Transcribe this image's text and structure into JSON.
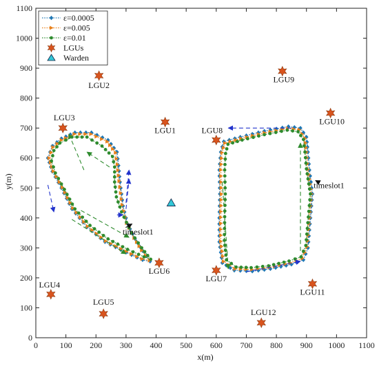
{
  "chart_data": {
    "type": "scatter",
    "xlabel": "x(m)",
    "ylabel": "y(m)",
    "xlim": [
      0,
      1100
    ],
    "ylim": [
      0,
      1100
    ],
    "xticks": [
      0,
      100,
      200,
      300,
      400,
      500,
      600,
      700,
      800,
      900,
      1000,
      1100
    ],
    "yticks": [
      0,
      100,
      200,
      300,
      400,
      500,
      600,
      700,
      800,
      900,
      1000,
      1100
    ],
    "grid": false,
    "legend": {
      "position": "top-left",
      "entries": [
        {
          "label": "ε=0.0005",
          "color": "#1f77b4",
          "marker": "diamond",
          "line": "dotted"
        },
        {
          "label": "ε=0.005",
          "color": "#e8801a",
          "marker": "triangle-right",
          "line": "dotted"
        },
        {
          "label": "ε=0.01",
          "color": "#2e8b2e",
          "marker": "circle",
          "line": "dotted"
        },
        {
          "label": "LGUs",
          "color": "#d9541e",
          "marker": "hexagram",
          "line": "none"
        },
        {
          "label": "Warden",
          "color": "#33c8d8",
          "marker": "triangle-up",
          "line": "none"
        }
      ]
    },
    "lgus": [
      {
        "label": "LGU1",
        "x": 430,
        "y": 720
      },
      {
        "label": "LGU2",
        "x": 210,
        "y": 875
      },
      {
        "label": "LGU3",
        "x": 90,
        "y": 700
      },
      {
        "label": "LGU4",
        "x": 50,
        "y": 145
      },
      {
        "label": "LGU5",
        "x": 225,
        "y": 80
      },
      {
        "label": "LGU6",
        "x": 410,
        "y": 250
      },
      {
        "label": "LGU7",
        "x": 600,
        "y": 225
      },
      {
        "label": "LGU8",
        "x": 600,
        "y": 660
      },
      {
        "label": "LGU9",
        "x": 820,
        "y": 890
      },
      {
        "label": "LGU10",
        "x": 980,
        "y": 750
      },
      {
        "label": "LGU11",
        "x": 920,
        "y": 180
      },
      {
        "label": "LGU12",
        "x": 750,
        "y": 50
      }
    ],
    "warden": {
      "x": 450,
      "y": 450
    },
    "left_paths": [
      {
        "series": "ε=0.0005",
        "points": [
          [
            380,
            255
          ],
          [
            355,
            290
          ],
          [
            330,
            330
          ],
          [
            305,
            380
          ],
          [
            290,
            440
          ],
          [
            280,
            520
          ],
          [
            275,
            575
          ],
          [
            270,
            620
          ],
          [
            240,
            660
          ],
          [
            185,
            685
          ],
          [
            130,
            685
          ],
          [
            85,
            665
          ],
          [
            55,
            640
          ],
          [
            40,
            600
          ],
          [
            55,
            555
          ],
          [
            85,
            500
          ],
          [
            120,
            430
          ],
          [
            170,
            370
          ],
          [
            230,
            320
          ],
          [
            300,
            285
          ],
          [
            355,
            260
          ],
          [
            380,
            255
          ]
        ]
      },
      {
        "series": "ε=0.005",
        "points": [
          [
            378,
            258
          ],
          [
            352,
            292
          ],
          [
            327,
            333
          ],
          [
            302,
            383
          ],
          [
            287,
            443
          ],
          [
            277,
            523
          ],
          [
            271,
            578
          ],
          [
            265,
            618
          ],
          [
            237,
            655
          ],
          [
            183,
            680
          ],
          [
            128,
            680
          ],
          [
            85,
            660
          ],
          [
            57,
            636
          ],
          [
            44,
            600
          ],
          [
            58,
            556
          ],
          [
            88,
            502
          ],
          [
            123,
            433
          ],
          [
            172,
            372
          ],
          [
            232,
            323
          ],
          [
            300,
            288
          ],
          [
            353,
            263
          ],
          [
            378,
            258
          ]
        ]
      },
      {
        "series": "ε=0.01",
        "points": [
          [
            382,
            262
          ],
          [
            352,
            300
          ],
          [
            318,
            350
          ],
          [
            285,
            420
          ],
          [
            268,
            470
          ],
          [
            262,
            520
          ],
          [
            262,
            570
          ],
          [
            255,
            605
          ],
          [
            220,
            640
          ],
          [
            170,
            670
          ],
          [
            120,
            670
          ],
          [
            80,
            650
          ],
          [
            60,
            625
          ],
          [
            52,
            590
          ],
          [
            65,
            550
          ],
          [
            95,
            495
          ],
          [
            130,
            430
          ],
          [
            180,
            375
          ],
          [
            240,
            330
          ],
          [
            305,
            295
          ],
          [
            360,
            270
          ],
          [
            382,
            262
          ]
        ]
      }
    ],
    "right_paths": [
      {
        "series": "ε=0.0005",
        "points": [
          [
            920,
            480
          ],
          [
            915,
            420
          ],
          [
            910,
            360
          ],
          [
            905,
            300
          ],
          [
            890,
            260
          ],
          [
            850,
            245
          ],
          [
            780,
            230
          ],
          [
            720,
            222
          ],
          [
            660,
            225
          ],
          [
            620,
            250
          ],
          [
            610,
            320
          ],
          [
            610,
            400
          ],
          [
            612,
            480
          ],
          [
            610,
            560
          ],
          [
            615,
            620
          ],
          [
            625,
            655
          ],
          [
            680,
            670
          ],
          [
            760,
            690
          ],
          [
            840,
            705
          ],
          [
            880,
            700
          ],
          [
            900,
            670
          ],
          [
            905,
            620
          ],
          [
            910,
            560
          ],
          [
            920,
            480
          ]
        ]
      },
      {
        "series": "ε=0.005",
        "points": [
          [
            917,
            480
          ],
          [
            912,
            420
          ],
          [
            907,
            362
          ],
          [
            902,
            304
          ],
          [
            886,
            265
          ],
          [
            846,
            250
          ],
          [
            777,
            235
          ],
          [
            718,
            228
          ],
          [
            662,
            230
          ],
          [
            624,
            255
          ],
          [
            615,
            322
          ],
          [
            615,
            402
          ],
          [
            617,
            480
          ],
          [
            615,
            560
          ],
          [
            619,
            618
          ],
          [
            629,
            650
          ],
          [
            682,
            665
          ],
          [
            760,
            684
          ],
          [
            838,
            699
          ],
          [
            876,
            694
          ],
          [
            895,
            666
          ],
          [
            900,
            620
          ],
          [
            905,
            562
          ],
          [
            917,
            480
          ]
        ]
      },
      {
        "series": "ε=0.01",
        "points": [
          [
            913,
            480
          ],
          [
            908,
            422
          ],
          [
            903,
            365
          ],
          [
            898,
            308
          ],
          [
            882,
            270
          ],
          [
            842,
            256
          ],
          [
            774,
            240
          ],
          [
            716,
            234
          ],
          [
            666,
            236
          ],
          [
            634,
            260
          ],
          [
            627,
            325
          ],
          [
            628,
            404
          ],
          [
            630,
            480
          ],
          [
            628,
            560
          ],
          [
            631,
            615
          ],
          [
            639,
            646
          ],
          [
            686,
            660
          ],
          [
            760,
            678
          ],
          [
            836,
            693
          ],
          [
            872,
            688
          ],
          [
            890,
            662
          ],
          [
            895,
            620
          ],
          [
            900,
            564
          ],
          [
            913,
            480
          ]
        ]
      }
    ],
    "direction_arrows": [
      {
        "color": "#2233cc",
        "from": [
          40,
          510
        ],
        "to": [
          60,
          420
        ]
      },
      {
        "color": "#2e8b2e",
        "from": [
          245,
          570
        ],
        "to": [
          170,
          620
        ]
      },
      {
        "color": "#2e8b2e",
        "from": [
          160,
          560
        ],
        "to": [
          110,
          680
        ]
      },
      {
        "color": "#2e8b2e",
        "from": [
          150,
          425
        ],
        "to": [
          310,
          335
        ]
      },
      {
        "color": "#2e8b2e",
        "from": [
          120,
          395
        ],
        "to": [
          300,
          280
        ]
      },
      {
        "color": "#2233cc",
        "from": [
          270,
          410
        ],
        "to": [
          290,
          410
        ]
      },
      {
        "color": "#2233cc",
        "from": [
          300,
          450
        ],
        "to": [
          310,
          560
        ]
      },
      {
        "color": "#2233cc",
        "from": [
          300,
          430
        ],
        "to": [
          310,
          530
        ]
      },
      {
        "color": "#2233cc",
        "from": [
          850,
          700
        ],
        "to": [
          640,
          700
        ]
      },
      {
        "color": "#2e8b2e",
        "from": [
          620,
          520
        ],
        "to": [
          640,
          230
        ]
      },
      {
        "color": "#2e8b2e",
        "from": [
          880,
          290
        ],
        "to": [
          880,
          650
        ]
      },
      {
        "color": "#2233cc",
        "from": [
          700,
          220
        ],
        "to": [
          880,
          255
        ]
      }
    ],
    "timeslot_labels": [
      {
        "text": "timeslot1",
        "x": 340,
        "y": 345,
        "arrow_to": [
          320,
          380
        ]
      },
      {
        "text": "timeslot1",
        "x": 975,
        "y": 500,
        "arrow_to": [
          930,
          525
        ]
      }
    ]
  }
}
